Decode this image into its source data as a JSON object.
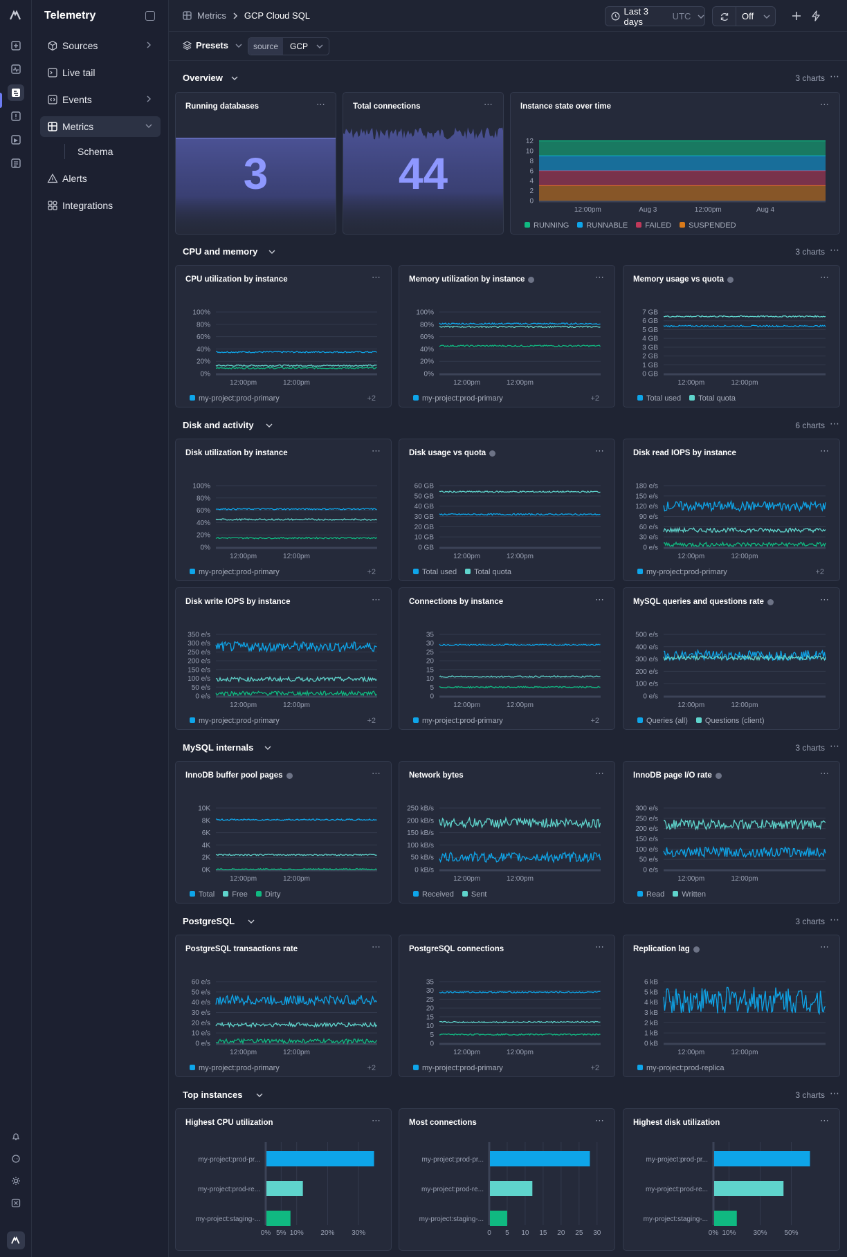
{
  "app": {
    "title": "Telemetry"
  },
  "sidebar": {
    "items": [
      {
        "label": "Sources"
      },
      {
        "label": "Live tail"
      },
      {
        "label": "Events"
      },
      {
        "label": "Metrics"
      },
      {
        "label": "Alerts"
      },
      {
        "label": "Integrations"
      }
    ],
    "sub_item": "Schema"
  },
  "header": {
    "breadcrumb_root": "Metrics",
    "breadcrumb_current": "GCP Cloud SQL",
    "time_range": "Last 3 days",
    "timezone": "UTC",
    "refresh": "Off"
  },
  "filters": {
    "presets": "Presets",
    "source_key": "source",
    "source_value": "GCP"
  },
  "sections": [
    {
      "title": "Overview",
      "count": "3 charts"
    },
    {
      "title": "CPU and memory",
      "count": "3 charts"
    },
    {
      "title": "Disk and activity",
      "count": "6 charts"
    },
    {
      "title": "MySQL internals",
      "count": "3 charts"
    },
    {
      "title": "PostgreSQL",
      "count": "3 charts"
    },
    {
      "title": "Top instances",
      "count": "3 charts"
    }
  ],
  "colors": {
    "blue": "#0ea5e9",
    "teal": "#5fd4cc",
    "green": "#10b981",
    "red": "#c0395a",
    "orange": "#d97a1a",
    "accent": "#8e98ff"
  },
  "overview": {
    "running_databases": {
      "title": "Running databases",
      "value": "3"
    },
    "total_connections": {
      "title": "Total connections",
      "value": "44"
    }
  },
  "chart_data": [
    {
      "id": "state",
      "type": "area",
      "title": "Instance state over time",
      "yticks": [
        "0",
        "2",
        "4",
        "6",
        "8",
        "10",
        "12"
      ],
      "ylim": [
        0,
        12.5
      ],
      "xticks": [
        "12:00pm",
        "Aug 3",
        "12:00pm",
        "Aug 4"
      ],
      "series": [
        {
          "name": "RUNNING",
          "values": [
            3
          ]
        },
        {
          "name": "RUNNABLE",
          "values": [
            3
          ]
        },
        {
          "name": "FAILED",
          "values": [
            3
          ]
        },
        {
          "name": "SUSPENDED",
          "values": [
            3
          ]
        }
      ],
      "legend": [
        "RUNNING",
        "RUNNABLE",
        "FAILED",
        "SUSPENDED"
      ]
    },
    {
      "id": "cpu",
      "type": "line",
      "title": "CPU utilization by instance",
      "info": false,
      "yticks": [
        "100%",
        "80%",
        "60%",
        "40%",
        "20%",
        "0%"
      ],
      "ylim": [
        0,
        100
      ],
      "xticks": [
        "12:00pm",
        "12:00pm"
      ],
      "series": [
        {
          "name": "my-project:prod-primary",
          "values": [
            35
          ]
        },
        {
          "values": [
            13
          ]
        },
        {
          "values": [
            9
          ]
        }
      ],
      "legend": [
        "my-project:prod-primary"
      ],
      "more": "+2"
    },
    {
      "id": "mem",
      "type": "line",
      "title": "Memory utilization by instance",
      "info": true,
      "yticks": [
        "100%",
        "80%",
        "60%",
        "40%",
        "20%",
        "0%"
      ],
      "ylim": [
        0,
        100
      ],
      "xticks": [
        "12:00pm",
        "12:00pm"
      ],
      "series": [
        {
          "name": "my-project:prod-primary",
          "values": [
            81
          ]
        },
        {
          "values": [
            76
          ]
        },
        {
          "values": [
            45
          ]
        }
      ],
      "legend": [
        "my-project:prod-primary"
      ],
      "more": "+2"
    },
    {
      "id": "memq",
      "type": "line",
      "title": "Memory usage vs quota",
      "info": true,
      "yticks": [
        "7 GB",
        "6 GB",
        "5 GB",
        "4 GB",
        "3 GB",
        "2 GB",
        "1 GB",
        "0 GB"
      ],
      "ylim": [
        0,
        7
      ],
      "xticks": [
        "12:00pm",
        "12:00pm"
      ],
      "series": [
        {
          "name": "Total used",
          "values": [
            5.4
          ]
        },
        {
          "name": "Total quota",
          "values": [
            6.5
          ]
        }
      ],
      "legend": [
        "Total used",
        "Total quota"
      ]
    },
    {
      "id": "disk",
      "type": "line",
      "title": "Disk utilization by instance",
      "info": false,
      "yticks": [
        "100%",
        "80%",
        "60%",
        "40%",
        "20%",
        "0%"
      ],
      "ylim": [
        0,
        100
      ],
      "xticks": [
        "12:00pm",
        "12:00pm"
      ],
      "series": [
        {
          "name": "my-project:prod-primary",
          "values": [
            62
          ]
        },
        {
          "values": [
            45
          ]
        },
        {
          "values": [
            15
          ]
        }
      ],
      "legend": [
        "my-project:prod-primary"
      ],
      "more": "+2"
    },
    {
      "id": "diskq",
      "type": "line",
      "title": "Disk usage vs quota",
      "info": true,
      "yticks": [
        "60 GB",
        "50 GB",
        "40 GB",
        "30 GB",
        "20 GB",
        "10 GB",
        "0 GB"
      ],
      "ylim": [
        0,
        60
      ],
      "xticks": [
        "12:00pm",
        "12:00pm"
      ],
      "series": [
        {
          "name": "Total used",
          "values": [
            32
          ]
        },
        {
          "name": "Total quota",
          "values": [
            54
          ]
        }
      ],
      "legend": [
        "Total used",
        "Total quota"
      ]
    },
    {
      "id": "riops",
      "type": "line",
      "title": "Disk read IOPS by instance",
      "info": false,
      "yticks": [
        "180 e/s",
        "150 e/s",
        "120 e/s",
        "90 e/s",
        "60 e/s",
        "30 e/s",
        "0 e/s"
      ],
      "ylim": [
        0,
        180
      ],
      "xticks": [
        "12:00pm",
        "12:00pm"
      ],
      "series": [
        {
          "name": "my-project:prod-primary",
          "values": [
            120
          ]
        },
        {
          "values": [
            50
          ]
        },
        {
          "values": [
            8
          ]
        }
      ],
      "legend": [
        "my-project:prod-primary"
      ],
      "more": "+2"
    },
    {
      "id": "wiops",
      "type": "line",
      "title": "Disk write IOPS by instance",
      "info": false,
      "yticks": [
        "350 e/s",
        "300 e/s",
        "250 e/s",
        "200 e/s",
        "150 e/s",
        "100 e/s",
        "50 e/s",
        "0 e/s"
      ],
      "ylim": [
        0,
        350
      ],
      "xticks": [
        "12:00pm",
        "12:00pm"
      ],
      "series": [
        {
          "name": "my-project:prod-primary",
          "values": [
            280
          ]
        },
        {
          "values": [
            95
          ]
        },
        {
          "values": [
            15
          ]
        }
      ],
      "legend": [
        "my-project:prod-primary"
      ],
      "more": "+2"
    },
    {
      "id": "conn",
      "type": "line",
      "title": "Connections by instance",
      "info": false,
      "yticks": [
        "35",
        "30",
        "25",
        "20",
        "15",
        "10",
        "5",
        "0"
      ],
      "ylim": [
        0,
        35
      ],
      "xticks": [
        "12:00pm",
        "12:00pm"
      ],
      "series": [
        {
          "name": "my-project:prod-primary",
          "values": [
            29
          ]
        },
        {
          "values": [
            11
          ]
        },
        {
          "values": [
            5
          ]
        }
      ],
      "legend": [
        "my-project:prod-primary"
      ],
      "more": "+2"
    },
    {
      "id": "mysqlq",
      "type": "line",
      "title": "MySQL queries and questions rate",
      "info": true,
      "yticks": [
        "500 e/s",
        "400 e/s",
        "300 e/s",
        "200 e/s",
        "100 e/s",
        "0 e/s"
      ],
      "ylim": [
        0,
        500
      ],
      "xticks": [
        "12:00pm",
        "12:00pm"
      ],
      "series": [
        {
          "name": "Queries (all)",
          "values": [
            330
          ]
        },
        {
          "name": "Questions (client)",
          "values": [
            310
          ]
        }
      ],
      "legend": [
        "Queries (all)",
        "Questions (client)"
      ]
    },
    {
      "id": "inno",
      "type": "line",
      "title": "InnoDB buffer pool pages",
      "info": true,
      "yticks": [
        "10K",
        "8K",
        "6K",
        "4K",
        "2K",
        "0K"
      ],
      "ylim": [
        0,
        10000
      ],
      "xticks": [
        "12:00pm",
        "12:00pm"
      ],
      "series": [
        {
          "name": "Total",
          "values": [
            8100
          ]
        },
        {
          "name": "Free",
          "values": [
            2400
          ]
        },
        {
          "name": "Dirty",
          "values": [
            50
          ]
        }
      ],
      "legend": [
        "Total",
        "Free",
        "Dirty"
      ]
    },
    {
      "id": "net",
      "type": "line",
      "title": "Network bytes",
      "info": false,
      "yticks": [
        "250 kB/s",
        "200 kB/s",
        "150 kB/s",
        "100 kB/s",
        "50 kB/s",
        "0 kB/s"
      ],
      "ylim": [
        0,
        250
      ],
      "xticks": [
        "12:00pm",
        "12:00pm"
      ],
      "series": [
        {
          "name": "Received",
          "values": [
            50
          ]
        },
        {
          "name": "Sent",
          "values": [
            190
          ]
        }
      ],
      "legend": [
        "Received",
        "Sent"
      ]
    },
    {
      "id": "pageio",
      "type": "line",
      "title": "InnoDB page I/O rate",
      "info": true,
      "yticks": [
        "300 e/s",
        "250 e/s",
        "200 e/s",
        "150 e/s",
        "100 e/s",
        "50 e/s",
        "0 e/s"
      ],
      "ylim": [
        0,
        300
      ],
      "xticks": [
        "12:00pm",
        "12:00pm"
      ],
      "series": [
        {
          "name": "Read",
          "values": [
            85
          ]
        },
        {
          "name": "Written",
          "values": [
            220
          ]
        }
      ],
      "legend": [
        "Read",
        "Written"
      ]
    },
    {
      "id": "pgtx",
      "type": "line",
      "title": "PostgreSQL transactions rate",
      "info": false,
      "yticks": [
        "60 e/s",
        "50 e/s",
        "40 e/s",
        "30 e/s",
        "20 e/s",
        "10 e/s",
        "0 e/s"
      ],
      "ylim": [
        0,
        60
      ],
      "xticks": [
        "12:00pm",
        "12:00pm"
      ],
      "series": [
        {
          "name": "my-project:prod-primary",
          "values": [
            42
          ]
        },
        {
          "values": [
            18
          ]
        },
        {
          "values": [
            2
          ]
        }
      ],
      "legend": [
        "my-project:prod-primary"
      ],
      "more": "+2"
    },
    {
      "id": "pgconn",
      "type": "line",
      "title": "PostgreSQL connections",
      "info": false,
      "yticks": [
        "35",
        "30",
        "25",
        "20",
        "15",
        "10",
        "5",
        "0"
      ],
      "ylim": [
        0,
        35
      ],
      "xticks": [
        "12:00pm",
        "12:00pm"
      ],
      "series": [
        {
          "name": "my-project:prod-primary",
          "values": [
            29
          ]
        },
        {
          "values": [
            12
          ]
        },
        {
          "values": [
            5
          ]
        }
      ],
      "legend": [
        "my-project:prod-primary"
      ],
      "more": "+2"
    },
    {
      "id": "lag",
      "type": "line",
      "title": "Replication lag",
      "info": true,
      "yticks": [
        "6 kB",
        "5 kB",
        "4 kB",
        "3 kB",
        "2 kB",
        "1 kB",
        "0 kB"
      ],
      "ylim": [
        0,
        6
      ],
      "xticks": [
        "12:00pm",
        "12:00pm"
      ],
      "series": [
        {
          "name": "my-project:prod-replica",
          "values": [
            4.2
          ]
        }
      ],
      "legend": [
        "my-project:prod-replica"
      ]
    },
    {
      "id": "topcpu",
      "type": "bar",
      "title": "Highest CPU utilization",
      "categories": [
        "my-project:prod-pr...",
        "my-project:prod-re...",
        "my-project:staging-..."
      ],
      "values": [
        35,
        12,
        8
      ],
      "xticks": [
        "0%",
        "5%",
        "10%",
        "20%",
        "30%"
      ],
      "xtick_values": [
        0,
        5,
        10,
        20,
        30
      ],
      "xlim": [
        0,
        36
      ]
    },
    {
      "id": "topconn",
      "type": "bar",
      "title": "Most connections",
      "categories": [
        "my-project:prod-pr...",
        "my-project:prod-re...",
        "my-project:staging-..."
      ],
      "values": [
        28,
        12,
        5
      ],
      "xticks": [
        "0",
        "5",
        "10",
        "15",
        "20",
        "25",
        "30"
      ],
      "xtick_values": [
        0,
        5,
        10,
        15,
        20,
        25,
        30
      ],
      "xlim": [
        0,
        31
      ]
    },
    {
      "id": "topdisk",
      "type": "bar",
      "title": "Highest disk utilization",
      "categories": [
        "my-project:prod-pr...",
        "my-project:prod-re...",
        "my-project:staging-..."
      ],
      "values": [
        62,
        45,
        15
      ],
      "xticks": [
        "0%",
        "10%",
        "30%",
        "50%"
      ],
      "xtick_values": [
        0,
        10,
        30,
        50
      ],
      "xlim": [
        0,
        72
      ]
    }
  ]
}
